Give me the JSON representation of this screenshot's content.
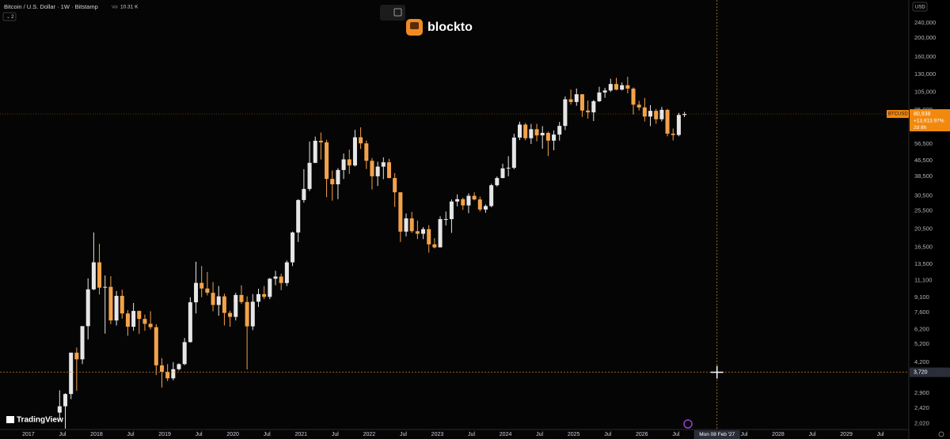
{
  "header": {
    "symbol": "Bitcoin / U.S. Dollar · 1W · Bitstamp",
    "volume_label": "Vol",
    "volume": "10.31 K",
    "indicator_count": "2"
  },
  "logo": "blockto",
  "watermark": "TradingView",
  "currency": "USD",
  "crosshair": {
    "x": "2027-02-08",
    "x_label": "Mon 08 Feb '27",
    "y": 3720,
    "y_label": "3,720",
    "color": "#c77a22"
  },
  "chart_data": {
    "type": "candlestick",
    "log_scale": true,
    "grid": false,
    "up_color": "#e6e6e6",
    "down_color": "#f3a24a",
    "x": [
      "2017-06",
      "2017-07",
      "2017-08",
      "2017-09",
      "2017-10",
      "2017-11",
      "2017-12",
      "2018-01",
      "2018-02",
      "2018-03",
      "2018-04",
      "2018-05",
      "2018-06",
      "2018-07",
      "2018-08",
      "2018-09",
      "2018-10",
      "2018-11",
      "2018-12",
      "2019-01",
      "2019-02",
      "2019-03",
      "2019-04",
      "2019-05",
      "2019-06",
      "2019-07",
      "2019-08",
      "2019-09",
      "2019-10",
      "2019-11",
      "2019-12",
      "2020-01",
      "2020-02",
      "2020-03",
      "2020-04",
      "2020-05",
      "2020-06",
      "2020-07",
      "2020-08",
      "2020-09",
      "2020-10",
      "2020-11",
      "2020-12",
      "2021-01",
      "2021-02",
      "2021-03",
      "2021-04",
      "2021-05",
      "2021-06",
      "2021-07",
      "2021-08",
      "2021-09",
      "2021-10",
      "2021-11",
      "2021-12",
      "2022-01",
      "2022-02",
      "2022-03",
      "2022-04",
      "2022-05",
      "2022-06",
      "2022-07",
      "2022-08",
      "2022-09",
      "2022-10",
      "2022-11",
      "2022-12",
      "2023-01",
      "2023-02",
      "2023-03",
      "2023-04",
      "2023-05",
      "2023-06",
      "2023-07",
      "2023-08",
      "2023-09",
      "2023-10",
      "2023-11",
      "2023-12",
      "2024-01",
      "2024-02",
      "2024-03",
      "2024-04",
      "2024-05",
      "2024-06",
      "2024-07",
      "2024-08",
      "2024-09",
      "2024-10",
      "2024-11",
      "2024-12",
      "2025-01",
      "2025-02",
      "2025-03",
      "2025-04",
      "2025-05",
      "2025-06",
      "2025-07",
      "2025-08",
      "2025-09",
      "2025-10",
      "2025-11",
      "2025-12",
      "2026-01",
      "2026-02",
      "2026-03",
      "2026-04",
      "2026-05",
      "2026-06",
      "2026-07",
      "2026-08"
    ],
    "open": [
      2300,
      2480,
      2870,
      4700,
      4340,
      6450,
      10000,
      13800,
      10200,
      10300,
      6900,
      9250,
      7500,
      6400,
      7730,
      7030,
      6630,
      6370,
      4040,
      3740,
      3460,
      3860,
      4100,
      5330,
      8570,
      10800,
      10100,
      9600,
      8300,
      9200,
      7550,
      7200,
      9350,
      8600,
      6430,
      8630,
      9450,
      9140,
      11350,
      11650,
      10780,
      13800,
      19700,
      29000,
      33100,
      45200,
      58800,
      57700,
      37300,
      35000,
      41500,
      47100,
      43800,
      61300,
      57000,
      46300,
      38500,
      43200,
      45500,
      37700,
      31800,
      19900,
      23300,
      20000,
      19400,
      20500,
      17100,
      16500,
      23100,
      23100,
      28500,
      29300,
      27200,
      30500,
      29200,
      25900,
      27000,
      34600,
      37700,
      42300,
      42600,
      61100,
      71300,
      60600,
      67500,
      62700,
      64600,
      58900,
      63300,
      70200,
      96400,
      93400,
      102400,
      84300,
      82500,
      94200,
      104600,
      107100,
      115700,
      108200,
      114000,
      109500,
      90400,
      87500,
      78500,
      84000,
      76000,
      85000,
      64000,
      63000,
      80000
    ],
    "high": [
      3000,
      2900,
      4700,
      5000,
      6400,
      11400,
      19700,
      17200,
      11800,
      11700,
      9800,
      9950,
      7800,
      8500,
      7760,
      7400,
      7700,
      6600,
      4400,
      4100,
      4200,
      4140,
      5600,
      9100,
      13900,
      13200,
      12300,
      10900,
      10400,
      9500,
      7750,
      9600,
      10500,
      9200,
      9450,
      10070,
      10400,
      11450,
      12480,
      12050,
      14100,
      19900,
      29300,
      41900,
      58300,
      61800,
      64900,
      59500,
      41300,
      42400,
      50500,
      52900,
      67000,
      69000,
      59000,
      47900,
      45800,
      48200,
      47400,
      40000,
      31900,
      24700,
      25200,
      22700,
      21000,
      21500,
      18400,
      23900,
      25300,
      29200,
      31000,
      29800,
      31400,
      31800,
      30200,
      27500,
      35200,
      38400,
      44700,
      48900,
      64000,
      73800,
      72700,
      71900,
      72000,
      70000,
      65600,
      66500,
      73600,
      99800,
      108300,
      109600,
      102500,
      95000,
      95700,
      112000,
      110500,
      123200,
      124500,
      117900,
      126200,
      111200,
      94600,
      98000,
      90000,
      86000,
      88000,
      86000,
      68000,
      82000,
      83000
    ],
    "low": [
      2100,
      1900,
      2700,
      2980,
      4100,
      5500,
      9900,
      9400,
      5900,
      6600,
      6500,
      7050,
      5750,
      6100,
      5880,
      6100,
      6200,
      3600,
      3100,
      3350,
      3380,
      3800,
      4050,
      5300,
      7500,
      9100,
      9300,
      7700,
      7300,
      6500,
      6400,
      6900,
      8400,
      3850,
      6150,
      8100,
      8900,
      8900,
      10500,
      9900,
      10400,
      13200,
      17600,
      28100,
      32300,
      45000,
      47000,
      30000,
      28800,
      29300,
      37300,
      39600,
      43300,
      53300,
      42000,
      32900,
      34300,
      37200,
      37600,
      26700,
      17600,
      18800,
      19600,
      18200,
      18200,
      15500,
      16300,
      16500,
      21400,
      19600,
      26900,
      25800,
      24800,
      28900,
      25300,
      24900,
      26600,
      34100,
      37600,
      38500,
      41900,
      59300,
      59100,
      56600,
      58400,
      53500,
      49000,
      52500,
      58900,
      66800,
      90500,
      89200,
      78200,
      76600,
      74400,
      93400,
      98200,
      105100,
      107300,
      107200,
      103500,
      80500,
      84400,
      74000,
      70000,
      72000,
      74000,
      62000,
      59000,
      62000,
      78000
    ],
    "close": [
      2480,
      2870,
      4700,
      4340,
      6450,
      10000,
      13800,
      10200,
      10300,
      6900,
      9250,
      7500,
      6400,
      7730,
      7030,
      6630,
      6370,
      4040,
      3740,
      3460,
      3860,
      4100,
      5330,
      8570,
      10800,
      10100,
      9600,
      8300,
      9200,
      7550,
      7200,
      9350,
      8600,
      6430,
      8630,
      9450,
      9140,
      11350,
      11650,
      10780,
      13800,
      19700,
      29000,
      33100,
      45200,
      58800,
      57700,
      37300,
      35000,
      41500,
      47100,
      43800,
      61300,
      57000,
      46300,
      38500,
      43200,
      45500,
      37700,
      31800,
      19900,
      23300,
      20000,
      19400,
      20500,
      17100,
      16500,
      23100,
      23100,
      28500,
      29300,
      27200,
      30500,
      29200,
      25900,
      27000,
      34600,
      37700,
      42300,
      42600,
      61100,
      71300,
      60600,
      67500,
      62700,
      64600,
      58900,
      63300,
      70200,
      96400,
      93400,
      102400,
      84300,
      82500,
      94200,
      104600,
      107100,
      115700,
      108200,
      114000,
      109500,
      90400,
      87500,
      78500,
      84000,
      76000,
      85000,
      64000,
      63000,
      80000,
      80938
    ],
    "ylim": [
      1880,
      315000
    ],
    "yticks": [
      {
        "value": 240000,
        "label": "240,000"
      },
      {
        "value": 200000,
        "label": "200,000"
      },
      {
        "value": 160000,
        "label": "160,000"
      },
      {
        "value": 130000,
        "label": "130,000"
      },
      {
        "value": 105000,
        "label": "105,000"
      },
      {
        "value": 85000,
        "label": "85,000"
      },
      {
        "value": 56500,
        "label": "56,500"
      },
      {
        "value": 46500,
        "label": "46,500"
      },
      {
        "value": 38500,
        "label": "38,500"
      },
      {
        "value": 30500,
        "label": "30,500"
      },
      {
        "value": 25500,
        "label": "25,500"
      },
      {
        "value": 20500,
        "label": "20,500"
      },
      {
        "value": 16500,
        "label": "16,500"
      },
      {
        "value": 13500,
        "label": "13,500"
      },
      {
        "value": 11100,
        "label": "11,100"
      },
      {
        "value": 9100,
        "label": "9,100"
      },
      {
        "value": 7600,
        "label": "7,600"
      },
      {
        "value": 6200,
        "label": "6,200"
      },
      {
        "value": 5200,
        "label": "5,200"
      },
      {
        "value": 4200,
        "label": "4,200"
      },
      {
        "value": 2900,
        "label": "2,900"
      },
      {
        "value": 2420,
        "label": "2,420"
      },
      {
        "value": 2020,
        "label": "2,020"
      }
    ],
    "xlim": [
      "2016-08",
      "2029-12"
    ],
    "xticks": [
      {
        "value": "2017-01",
        "label": "2017"
      },
      {
        "value": "2017-07",
        "label": "Jul"
      },
      {
        "value": "2018-01",
        "label": "2018"
      },
      {
        "value": "2018-07",
        "label": "Jul"
      },
      {
        "value": "2019-01",
        "label": "2019"
      },
      {
        "value": "2019-07",
        "label": "Jul"
      },
      {
        "value": "2020-01",
        "label": "2020"
      },
      {
        "value": "2020-07",
        "label": "Jul"
      },
      {
        "value": "2021-01",
        "label": "2021"
      },
      {
        "value": "2021-07",
        "label": "Jul"
      },
      {
        "value": "2022-01",
        "label": "2022"
      },
      {
        "value": "2022-07",
        "label": "Jul"
      },
      {
        "value": "2023-01",
        "label": "2023"
      },
      {
        "value": "2023-07",
        "label": "Jul"
      },
      {
        "value": "2024-01",
        "label": "2024"
      },
      {
        "value": "2024-07",
        "label": "Jul"
      },
      {
        "value": "2025-01",
        "label": "2025"
      },
      {
        "value": "2025-07",
        "label": "Jul"
      },
      {
        "value": "2026-01",
        "label": "2026"
      },
      {
        "value": "2026-07",
        "label": "Jul"
      },
      {
        "value": "2027-07",
        "label": "Jul"
      },
      {
        "value": "2028-01",
        "label": "2028"
      },
      {
        "value": "2028-07",
        "label": "Jul"
      },
      {
        "value": "2029-01",
        "label": "2029"
      },
      {
        "value": "2029-07",
        "label": "Jul"
      }
    ],
    "last_price": {
      "symbol": "BTCUSD",
      "value": 80938,
      "label": "80,938",
      "change": "+13,913.97%",
      "countdown": "2d 8h",
      "color": "#f2890f"
    }
  }
}
